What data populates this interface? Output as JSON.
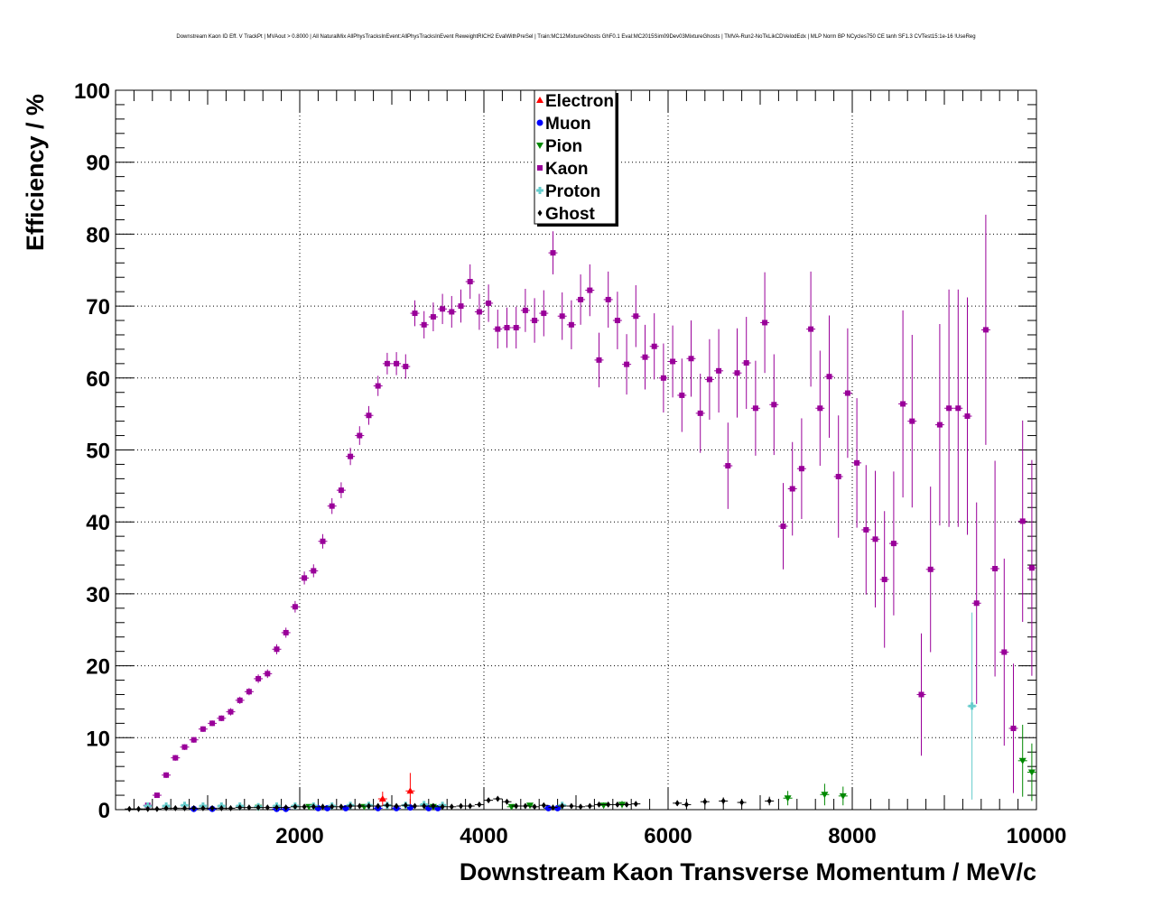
{
  "chart_data": {
    "type": "scatter",
    "title": "Downstream Kaon ID Eff. V TrackPt | MVAout > 0.8000 | All NaturalMix AllPhysTracksInEvent:AllPhysTracksInEvent ReweightRICH2 EvalWithPreSel | Train:MC12MixtureGhosts GhF0.1 Eval:MC2015Sim09Dev03MixtureGhosts | TMVA-Run2-NoTkLikCDVelodEdx | MLP Norm BP NCycles750 CE tanh SF1.3 CVTest15:1e-16 !UseReg",
    "xlabel": "Downstream Kaon Transverse Momentum / MeV/c",
    "ylabel": "Efficiency / %",
    "xlim": [
      0,
      10000
    ],
    "ylim": [
      0,
      100
    ],
    "xticks": [
      2000,
      4000,
      6000,
      8000,
      10000
    ],
    "yticks": [
      0,
      10,
      20,
      30,
      40,
      50,
      60,
      70,
      80,
      90,
      100
    ],
    "grid": true,
    "legend_position": "top-center",
    "series": [
      {
        "name": "Electron",
        "color": "#ff0000",
        "marker": "triangle-up",
        "points": [
          [
            2900,
            1.5,
            1.0
          ],
          [
            3200,
            2.6,
            2.5
          ]
        ]
      },
      {
        "name": "Muon",
        "color": "#0000ff",
        "marker": "circle",
        "points": [
          [
            850,
            0.1,
            0.2
          ],
          [
            1050,
            0.1,
            0.2
          ],
          [
            1750,
            0.1,
            0.2
          ],
          [
            1850,
            0.1,
            0.2
          ],
          [
            2200,
            0.2,
            0.2
          ],
          [
            2300,
            0.2,
            0.2
          ],
          [
            2500,
            0.2,
            0.2
          ],
          [
            2850,
            0.2,
            0.2
          ],
          [
            3050,
            0.2,
            0.2
          ],
          [
            3200,
            0.3,
            0.2
          ],
          [
            3400,
            0.2,
            0.2
          ],
          [
            3500,
            0.2,
            0.2
          ],
          [
            4700,
            0.2,
            0.3
          ],
          [
            4800,
            0.2,
            0.3
          ]
        ]
      },
      {
        "name": "Pion",
        "color": "#008800",
        "marker": "triangle-down",
        "points": [
          [
            1550,
            0.3,
            0.2
          ],
          [
            2100,
            0.4,
            0.2
          ],
          [
            2700,
            0.4,
            0.2
          ],
          [
            3450,
            0.4,
            0.2
          ],
          [
            4300,
            0.4,
            0.3
          ],
          [
            4500,
            0.6,
            0.3
          ],
          [
            5300,
            0.6,
            0.4
          ],
          [
            5500,
            0.7,
            0.5
          ],
          [
            7300,
            1.6,
            1.0
          ],
          [
            7700,
            2.1,
            1.5
          ],
          [
            7900,
            1.9,
            1.3
          ],
          [
            9850,
            6.8,
            5.0
          ],
          [
            9950,
            5.2,
            4.0
          ]
        ]
      },
      {
        "name": "Kaon",
        "color": "#990099",
        "marker": "square",
        "points": [
          [
            350,
            0.6,
            0.2
          ],
          [
            450,
            2.0,
            0.3
          ],
          [
            550,
            4.8,
            0.4
          ],
          [
            650,
            7.2,
            0.4
          ],
          [
            750,
            8.7,
            0.4
          ],
          [
            850,
            9.7,
            0.4
          ],
          [
            950,
            11.2,
            0.4
          ],
          [
            1050,
            12.0,
            0.4
          ],
          [
            1150,
            12.7,
            0.4
          ],
          [
            1250,
            13.6,
            0.5
          ],
          [
            1350,
            15.2,
            0.5
          ],
          [
            1450,
            16.4,
            0.5
          ],
          [
            1550,
            18.2,
            0.6
          ],
          [
            1650,
            18.9,
            0.6
          ],
          [
            1750,
            22.3,
            0.7
          ],
          [
            1850,
            24.6,
            0.7
          ],
          [
            1950,
            28.2,
            0.8
          ],
          [
            2050,
            32.2,
            0.9
          ],
          [
            2150,
            33.2,
            0.9
          ],
          [
            2250,
            37.3,
            1.0
          ],
          [
            2350,
            42.2,
            1.1
          ],
          [
            2450,
            44.4,
            1.1
          ],
          [
            2550,
            49.1,
            1.2
          ],
          [
            2650,
            52.0,
            1.3
          ],
          [
            2750,
            54.8,
            1.3
          ],
          [
            2850,
            58.9,
            1.4
          ],
          [
            2950,
            62.0,
            1.5
          ],
          [
            3050,
            62.0,
            1.6
          ],
          [
            3150,
            61.6,
            1.7
          ],
          [
            3250,
            69.0,
            1.8
          ],
          [
            3350,
            67.4,
            1.9
          ],
          [
            3450,
            68.5,
            2.0
          ],
          [
            3550,
            69.6,
            2.1
          ],
          [
            3650,
            69.2,
            2.2
          ],
          [
            3750,
            70.0,
            2.3
          ],
          [
            3850,
            73.4,
            2.4
          ],
          [
            3950,
            69.2,
            2.5
          ],
          [
            4050,
            70.4,
            2.6
          ],
          [
            4150,
            66.8,
            2.7
          ],
          [
            4250,
            67.0,
            2.8
          ],
          [
            4350,
            67.0,
            2.9
          ],
          [
            4450,
            69.4,
            3.0
          ],
          [
            4550,
            68.0,
            3.1
          ],
          [
            4650,
            69.0,
            3.2
          ],
          [
            4750,
            77.4,
            3.0
          ],
          [
            4850,
            68.6,
            3.3
          ],
          [
            4950,
            67.4,
            3.4
          ],
          [
            5050,
            70.9,
            3.5
          ],
          [
            5150,
            72.2,
            3.6
          ],
          [
            5250,
            62.5,
            3.8
          ],
          [
            5350,
            70.9,
            3.9
          ],
          [
            5450,
            68.0,
            4.0
          ],
          [
            5550,
            61.9,
            4.2
          ],
          [
            5650,
            68.6,
            4.3
          ],
          [
            5750,
            62.9,
            4.5
          ],
          [
            5850,
            64.4,
            4.6
          ],
          [
            5950,
            60.0,
            4.8
          ],
          [
            6050,
            62.3,
            5.0
          ],
          [
            6150,
            57.6,
            5.1
          ],
          [
            6250,
            62.7,
            5.3
          ],
          [
            6350,
            55.1,
            5.5
          ],
          [
            6450,
            59.8,
            5.6
          ],
          [
            6550,
            61.0,
            5.8
          ],
          [
            6650,
            47.8,
            6.0
          ],
          [
            6750,
            60.7,
            6.2
          ],
          [
            6850,
            62.1,
            6.4
          ],
          [
            6950,
            55.8,
            6.6
          ],
          [
            7050,
            67.7,
            7.0
          ],
          [
            7150,
            56.3,
            7.0
          ],
          [
            7250,
            39.4,
            6.0
          ],
          [
            7350,
            44.6,
            6.5
          ],
          [
            7450,
            47.4,
            7.0
          ],
          [
            7550,
            66.8,
            8.0
          ],
          [
            7650,
            55.8,
            8.0
          ],
          [
            7750,
            60.2,
            8.5
          ],
          [
            7850,
            46.3,
            8.5
          ],
          [
            7950,
            57.9,
            9.0
          ],
          [
            8050,
            48.2,
            9.0
          ],
          [
            8150,
            38.9,
            9.0
          ],
          [
            8250,
            37.6,
            9.5
          ],
          [
            8350,
            32.0,
            9.5
          ],
          [
            8450,
            37.0,
            10.0
          ],
          [
            8550,
            56.4,
            13.0
          ],
          [
            8650,
            54.0,
            12.0
          ],
          [
            8750,
            16.0,
            8.5
          ],
          [
            8850,
            33.4,
            11.5
          ],
          [
            8950,
            53.5,
            14.0
          ],
          [
            9050,
            55.8,
            16.5
          ],
          [
            9150,
            55.8,
            16.5
          ],
          [
            9250,
            54.7,
            16.5
          ],
          [
            9350,
            28.7,
            14.0
          ],
          [
            9450,
            66.7,
            16.0
          ],
          [
            9550,
            33.5,
            15.0
          ],
          [
            9650,
            21.9,
            13.0
          ],
          [
            9750,
            11.3,
            9.0
          ],
          [
            9850,
            40.1,
            14.0
          ],
          [
            9950,
            33.6,
            15.0
          ]
        ]
      },
      {
        "name": "Proton",
        "color": "#66cccc",
        "marker": "cross",
        "points": [
          [
            350,
            0.5,
            0.2
          ],
          [
            550,
            0.5,
            0.2
          ],
          [
            750,
            0.6,
            0.2
          ],
          [
            950,
            0.5,
            0.2
          ],
          [
            1150,
            0.5,
            0.2
          ],
          [
            1350,
            0.5,
            0.2
          ],
          [
            1550,
            0.4,
            0.2
          ],
          [
            1750,
            0.5,
            0.2
          ],
          [
            1950,
            0.5,
            0.2
          ],
          [
            2150,
            0.5,
            0.2
          ],
          [
            2350,
            0.5,
            0.2
          ],
          [
            2550,
            0.6,
            0.2
          ],
          [
            2750,
            0.6,
            0.3
          ],
          [
            2950,
            0.6,
            0.3
          ],
          [
            3150,
            0.6,
            0.3
          ],
          [
            3350,
            0.7,
            0.3
          ],
          [
            3550,
            0.6,
            0.3
          ],
          [
            4850,
            0.6,
            0.3
          ],
          [
            9300,
            14.4,
            13.0
          ]
        ]
      },
      {
        "name": "Ghost",
        "color": "#000000",
        "marker": "diamond",
        "points": [
          [
            150,
            0.1,
            0.1
          ],
          [
            250,
            0.1,
            0.1
          ],
          [
            350,
            0.1,
            0.1
          ],
          [
            450,
            0.1,
            0.1
          ],
          [
            550,
            0.2,
            0.1
          ],
          [
            650,
            0.2,
            0.1
          ],
          [
            750,
            0.2,
            0.1
          ],
          [
            850,
            0.2,
            0.1
          ],
          [
            950,
            0.2,
            0.1
          ],
          [
            1050,
            0.2,
            0.1
          ],
          [
            1150,
            0.2,
            0.1
          ],
          [
            1250,
            0.2,
            0.1
          ],
          [
            1350,
            0.3,
            0.1
          ],
          [
            1450,
            0.3,
            0.1
          ],
          [
            1550,
            0.3,
            0.1
          ],
          [
            1650,
            0.3,
            0.1
          ],
          [
            1750,
            0.3,
            0.1
          ],
          [
            1850,
            0.3,
            0.1
          ],
          [
            1950,
            0.4,
            0.1
          ],
          [
            2050,
            0.4,
            0.1
          ],
          [
            2150,
            0.4,
            0.1
          ],
          [
            2250,
            0.4,
            0.1
          ],
          [
            2350,
            0.4,
            0.1
          ],
          [
            2450,
            0.4,
            0.1
          ],
          [
            2550,
            0.5,
            0.1
          ],
          [
            2650,
            0.5,
            0.1
          ],
          [
            2750,
            0.5,
            0.1
          ],
          [
            2850,
            0.5,
            0.1
          ],
          [
            2950,
            0.6,
            0.1
          ],
          [
            3050,
            0.5,
            0.1
          ],
          [
            3150,
            0.6,
            0.1
          ],
          [
            3250,
            0.5,
            0.1
          ],
          [
            3350,
            0.5,
            0.1
          ],
          [
            3450,
            0.5,
            0.1
          ],
          [
            3550,
            0.4,
            0.1
          ],
          [
            3650,
            0.4,
            0.1
          ],
          [
            3750,
            0.5,
            0.1
          ],
          [
            3850,
            0.5,
            0.1
          ],
          [
            3950,
            0.7,
            0.2
          ],
          [
            4050,
            1.3,
            0.3
          ],
          [
            4150,
            1.5,
            0.3
          ],
          [
            4250,
            1.1,
            0.3
          ],
          [
            4350,
            0.5,
            0.2
          ],
          [
            4450,
            0.5,
            0.2
          ],
          [
            4550,
            0.4,
            0.2
          ],
          [
            4650,
            0.6,
            0.2
          ],
          [
            4750,
            0.3,
            0.2
          ],
          [
            4850,
            0.5,
            0.2
          ],
          [
            4950,
            0.5,
            0.2
          ],
          [
            5050,
            0.4,
            0.2
          ],
          [
            5150,
            0.5,
            0.2
          ],
          [
            5250,
            0.7,
            0.2
          ],
          [
            5350,
            0.7,
            0.2
          ],
          [
            5450,
            0.7,
            0.3
          ],
          [
            5550,
            0.7,
            0.3
          ],
          [
            5650,
            0.8,
            0.3
          ],
          [
            6100,
            0.9,
            0.4
          ],
          [
            6200,
            0.7,
            0.4
          ],
          [
            6400,
            1.1,
            0.5
          ],
          [
            6600,
            1.2,
            0.5
          ],
          [
            6800,
            1.0,
            0.5
          ],
          [
            7100,
            1.2,
            0.6
          ]
        ]
      }
    ]
  }
}
